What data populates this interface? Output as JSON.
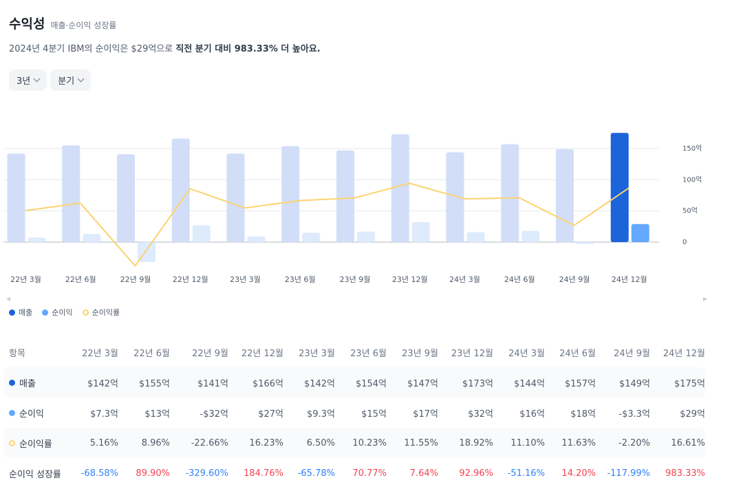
{
  "header": {
    "title": "수익성",
    "subtitle": "매출·순이익 성장률",
    "summary_pre": "2024년 4분기 IBM의 순이익은 $29억으로 ",
    "summary_bold": "직전 분기 대비 983.33% 더 높아요."
  },
  "controls": {
    "period": "3년",
    "interval": "분기"
  },
  "legend": {
    "revenue": "매출",
    "net_income": "순이익",
    "margin": "순이익률"
  },
  "colors": {
    "revenue_bar": "#d2def8",
    "revenue_bar_latest": "#1b64da",
    "income_bar": "#deebfd",
    "income_bar_latest": "#64a8ff",
    "margin_line": "#fdd36e",
    "negative": "#3182f6",
    "positive": "#f04452"
  },
  "chart_data": {
    "type": "bar",
    "categories": [
      "22년 3월",
      "22년 6월",
      "22년 9월",
      "22년 12월",
      "23년 3월",
      "23년 6월",
      "23년 9월",
      "23년 12월",
      "24년 3월",
      "24년 6월",
      "24년 9월",
      "24년 12월"
    ],
    "series": [
      {
        "name": "매출",
        "unit": "억",
        "values": [
          142,
          155,
          141,
          166,
          142,
          154,
          147,
          173,
          144,
          157,
          149,
          175
        ]
      },
      {
        "name": "순이익",
        "unit": "억",
        "values": [
          7.3,
          13,
          -32,
          27,
          9.3,
          15,
          17,
          32,
          16,
          18,
          -3.3,
          29
        ]
      },
      {
        "name": "순이익률",
        "unit": "%",
        "values": [
          5.16,
          8.96,
          -22.66,
          16.23,
          6.5,
          10.23,
          11.55,
          18.92,
          11.1,
          11.63,
          -2.2,
          16.61
        ]
      }
    ],
    "y_ticks": [
      {
        "value": 0,
        "label": "0"
      },
      {
        "value": 50,
        "label": "50억"
      },
      {
        "value": 100,
        "label": "100억"
      },
      {
        "value": 150,
        "label": "150억"
      }
    ],
    "ylim": [
      -32,
      180
    ],
    "grid": true,
    "legend_position": "bottom-left"
  },
  "table": {
    "header_label": "항목",
    "columns": [
      "22년 3월",
      "22년 6월",
      "22년 9월",
      "22년 12월",
      "23년 3월",
      "23년 6월",
      "23년 9월",
      "23년 12월",
      "24년 3월",
      "24년 6월",
      "24년 9월",
      "24년 12월"
    ],
    "rows": [
      {
        "label": "매출",
        "marker": "revenue",
        "cells": [
          "$142억",
          "$155억",
          "$141억",
          "$166억",
          "$142억",
          "$154억",
          "$147억",
          "$173억",
          "$144억",
          "$157억",
          "$149억",
          "$175억"
        ]
      },
      {
        "label": "순이익",
        "marker": "income",
        "cells": [
          "$7.3억",
          "$13억",
          "-$32억",
          "$27억",
          "$9.3억",
          "$15억",
          "$17억",
          "$32억",
          "$16억",
          "$18억",
          "-$3.3억",
          "$29억"
        ]
      },
      {
        "label": "순이익률",
        "marker": "margin",
        "cells": [
          "5.16%",
          "8.96%",
          "-22.66%",
          "16.23%",
          "6.50%",
          "10.23%",
          "11.55%",
          "18.92%",
          "11.10%",
          "11.63%",
          "-2.20%",
          "16.61%"
        ]
      },
      {
        "label": "순이익 성장률",
        "marker": "none",
        "cells": [
          "-68.58%",
          "89.90%",
          "-329.60%",
          "184.76%",
          "-65.78%",
          "70.77%",
          "7.64%",
          "92.96%",
          "-51.16%",
          "14.20%",
          "-117.99%",
          "983.33%"
        ]
      }
    ]
  }
}
